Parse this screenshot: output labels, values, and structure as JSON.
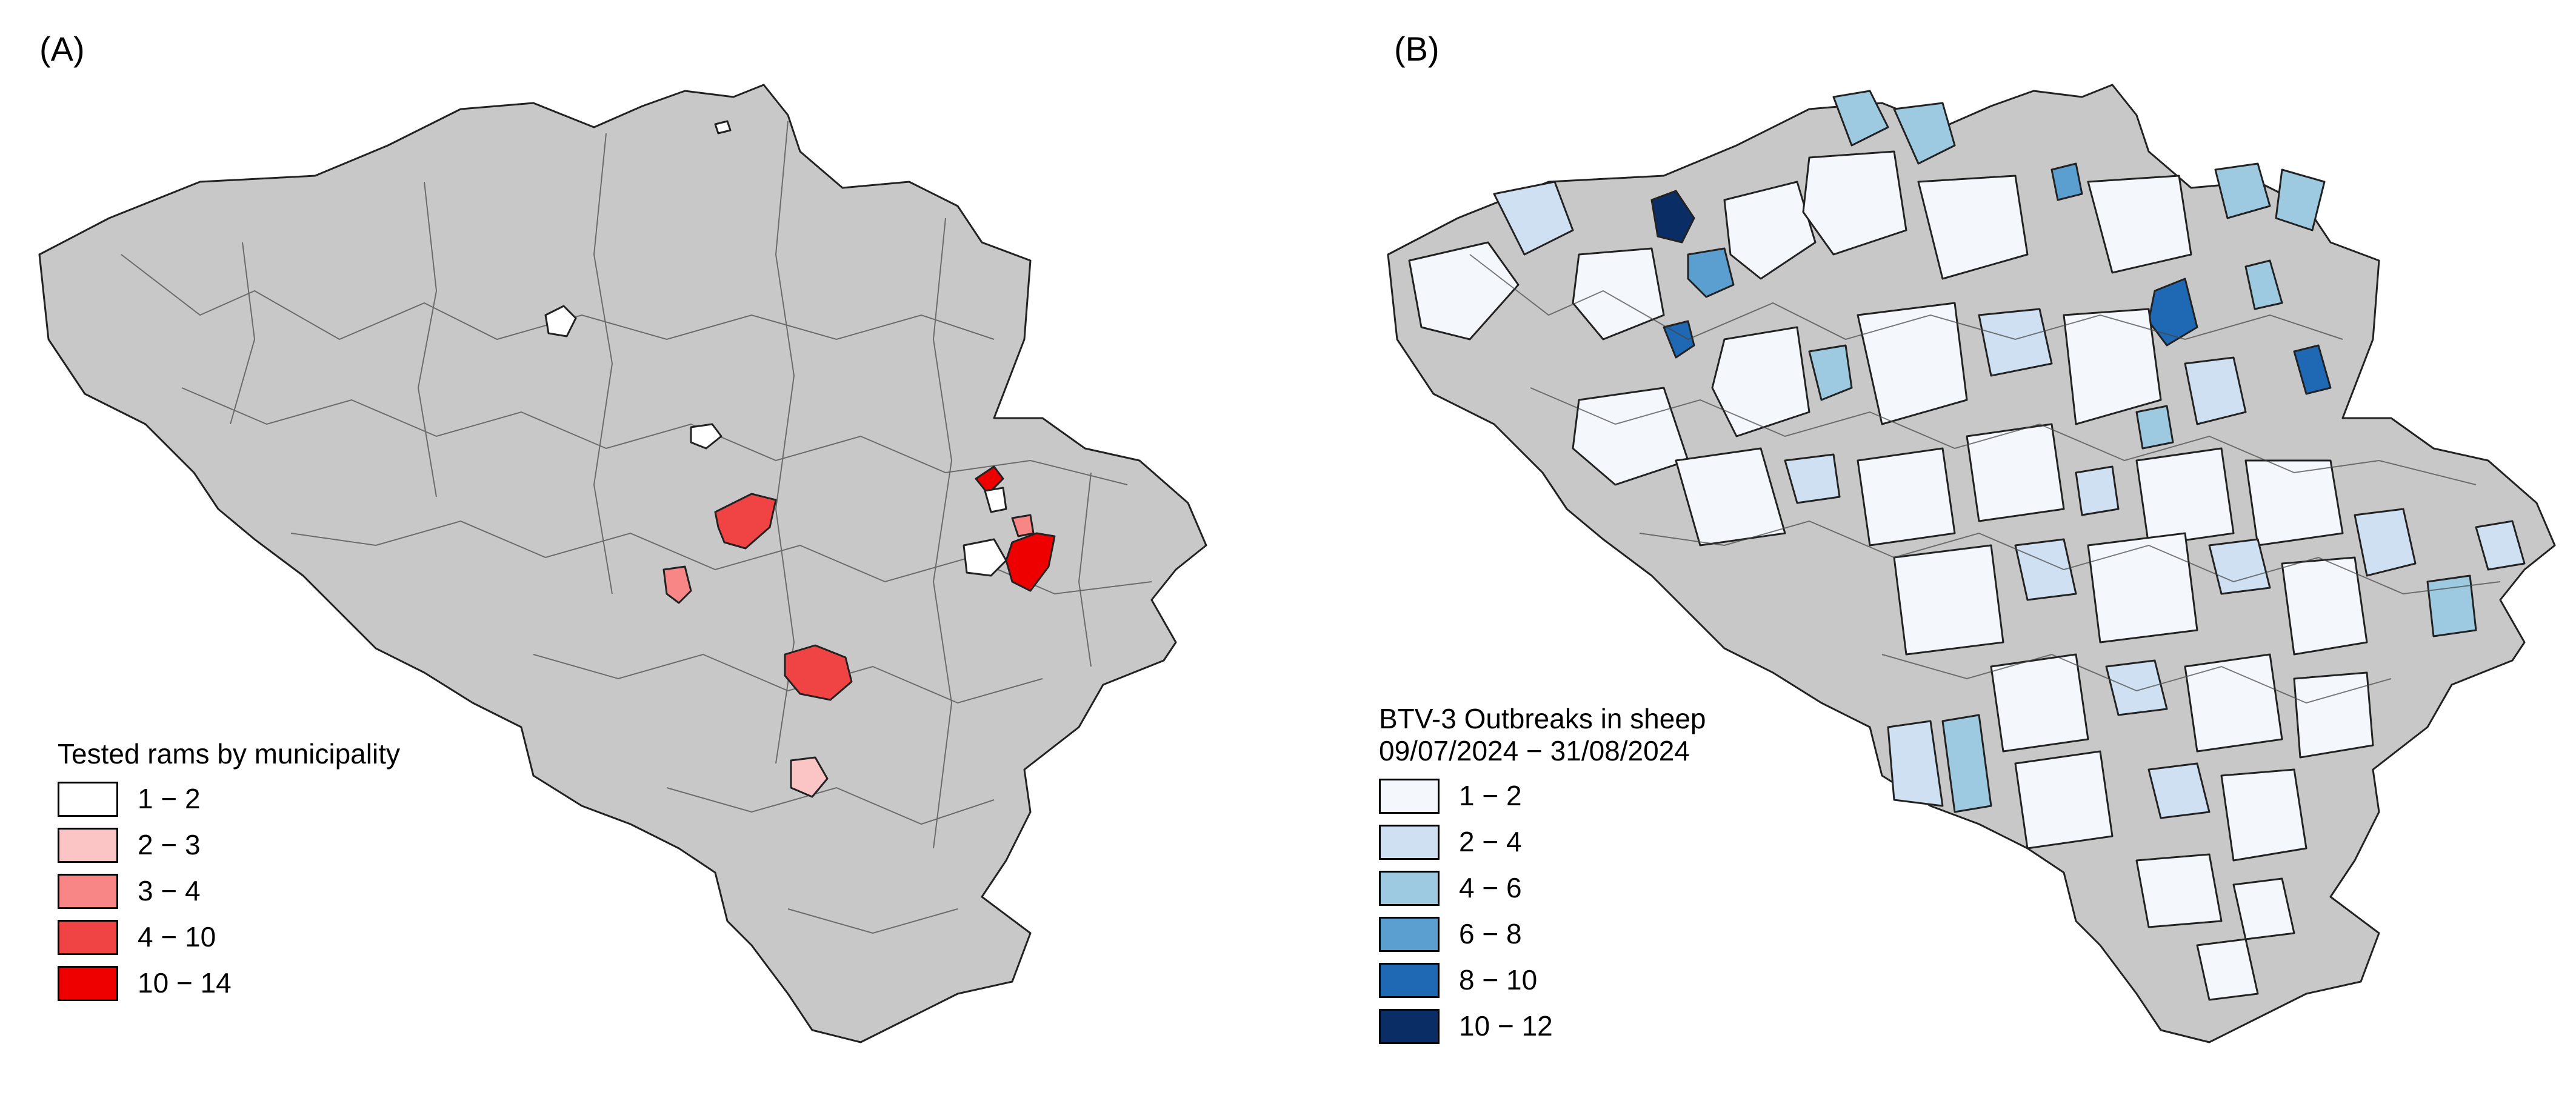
{
  "panel_a": {
    "label": "(A)",
    "legend_title": "Tested rams by municipality",
    "legend": [
      {
        "label": "1 − 2",
        "color": "#ffffff"
      },
      {
        "label": "2 − 3",
        "color": "#fcc5c5"
      },
      {
        "label": "3 − 4",
        "color": "#f88686"
      },
      {
        "label": "4 − 10",
        "color": "#f04444"
      },
      {
        "label": "10 − 14",
        "color": "#ee0000"
      }
    ]
  },
  "panel_b": {
    "label": "(B)",
    "legend_title": "BTV-3 Outbreaks in sheep",
    "legend_subtitle": "09/07/2024 − 31/08/2024",
    "legend": [
      {
        "label": "1 − 2",
        "color": "#f4f8fd"
      },
      {
        "label": "2 − 4",
        "color": "#cfe0f2"
      },
      {
        "label": "4 − 6",
        "color": "#9ecae1"
      },
      {
        "label": "6 − 8",
        "color": "#5a9fcf"
      },
      {
        "label": "8 − 10",
        "color": "#1f68b3"
      },
      {
        "label": "10 − 12",
        "color": "#0b2d66"
      }
    ]
  },
  "colors": {
    "no_data": "#c8c8c8",
    "border": "#222222"
  }
}
